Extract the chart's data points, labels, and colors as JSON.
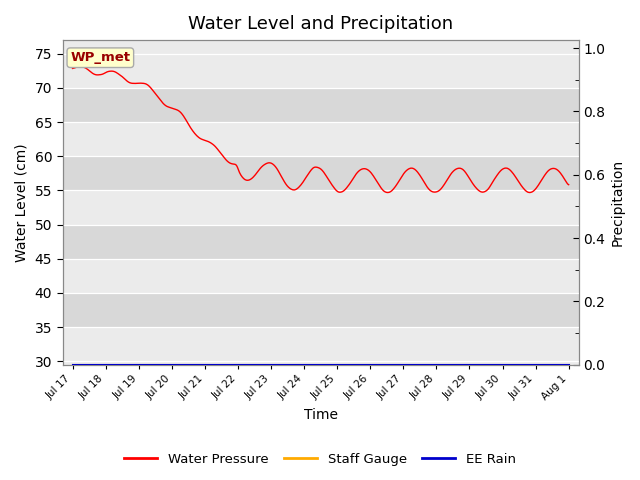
{
  "title": "Water Level and Precipitation",
  "xlabel": "Time",
  "ylabel_left": "Water Level (cm)",
  "ylabel_right": "Precipitation",
  "annotation_text": "WP_met",
  "annotation_bg": "#ffffcc",
  "annotation_border": "#aaaaaa",
  "annotation_text_color": "#990000",
  "ylim_left": [
    29.5,
    77
  ],
  "ylim_right": [
    0.0,
    1.025
  ],
  "yticks_left": [
    30,
    35,
    40,
    45,
    50,
    55,
    60,
    65,
    70,
    75
  ],
  "yticks_right": [
    0.0,
    0.2,
    0.4,
    0.6,
    0.8,
    1.0
  ],
  "bg_color_light": "#ebebeb",
  "bg_color_dark": "#d8d8d8",
  "line_color_wp": "#ff0000",
  "line_color_staff": "#ffaa00",
  "line_color_rain": "#0000cc",
  "legend_labels": [
    "Water Pressure",
    "Staff Gauge",
    "EE Rain"
  ],
  "title_fontsize": 13,
  "axis_label_fontsize": 10
}
